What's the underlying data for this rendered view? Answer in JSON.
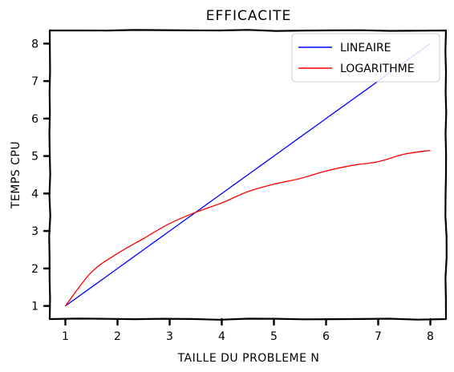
{
  "chart_data": {
    "type": "line",
    "title": "EFFICACITE",
    "xlabel": "TAILLE DU PROBLEME N",
    "ylabel": "TEMPS CPU",
    "x": [
      1,
      1.5,
      2,
      2.5,
      3,
      3.5,
      4,
      4.5,
      5,
      5.5,
      6,
      6.5,
      7,
      7.5,
      8
    ],
    "xlim": [
      0.7,
      8.3
    ],
    "ylim": [
      0.65,
      8.35
    ],
    "xticks": [
      "1",
      "2",
      "3",
      "4",
      "5",
      "6",
      "7",
      "8"
    ],
    "yticks": [
      "1",
      "2",
      "3",
      "4",
      "5",
      "6",
      "7",
      "8"
    ],
    "grid": false,
    "legend_position": "top-right",
    "series": [
      {
        "name": "LINEAIRE",
        "color": "#0000ff",
        "values": [
          1,
          1.5,
          2,
          2.5,
          3,
          3.5,
          4,
          4.5,
          5,
          5.5,
          6,
          6.5,
          7,
          7.5,
          8
        ]
      },
      {
        "name": "LOGARITHME",
        "color": "#ff0000",
        "values": [
          1,
          1.9,
          2.4,
          2.8,
          3.2,
          3.5,
          3.75,
          4.05,
          4.25,
          4.4,
          4.6,
          4.75,
          4.85,
          5.05,
          5.15
        ]
      }
    ]
  }
}
